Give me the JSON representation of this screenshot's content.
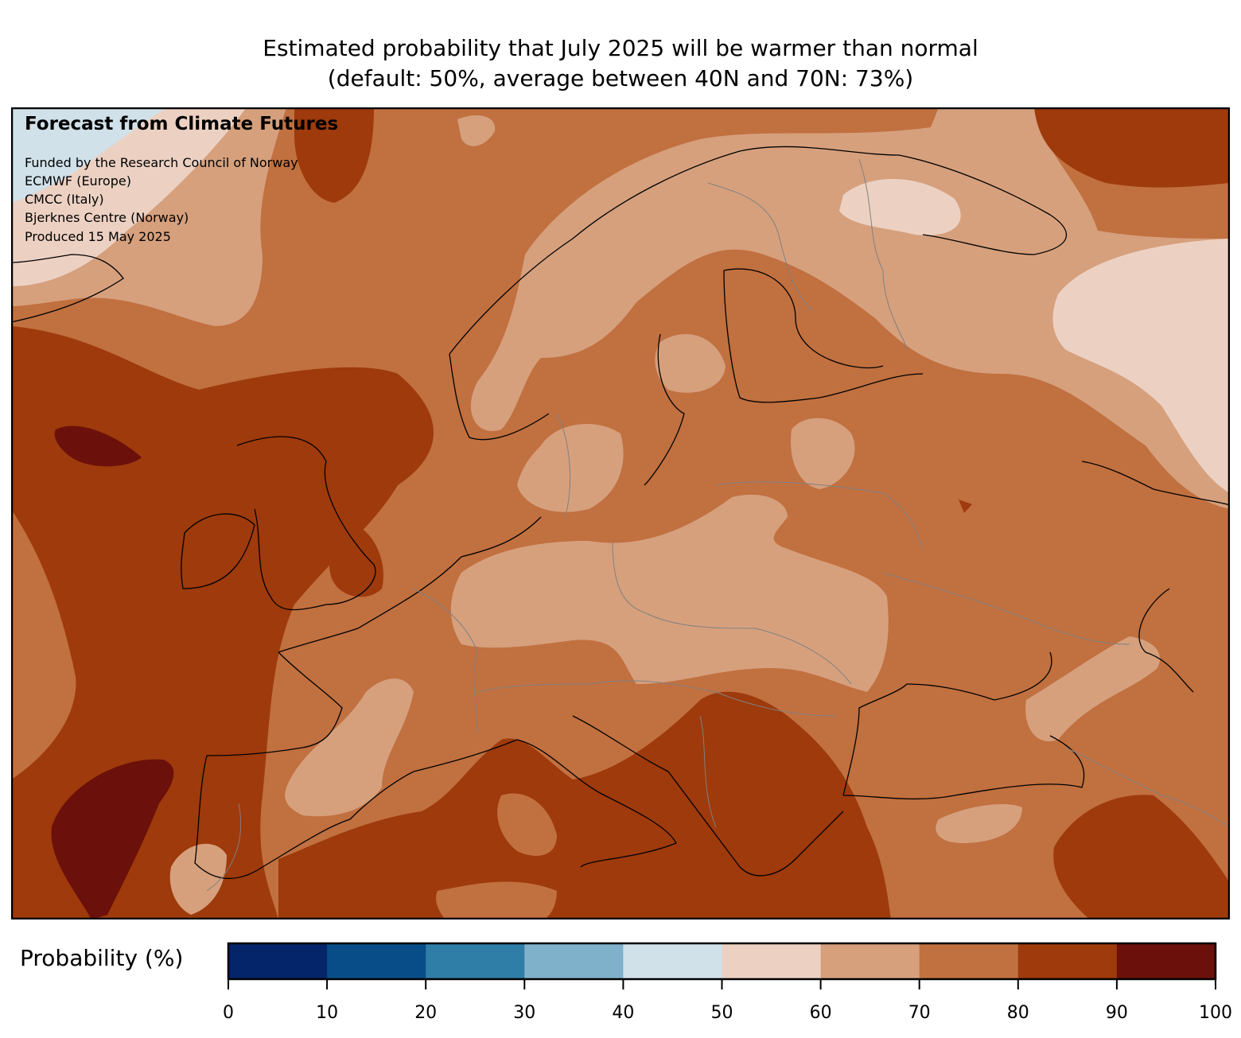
{
  "title": {
    "line1": "Estimated probability that July 2025 will be warmer than normal",
    "line2": "(default: 50%, average between 40N and 70N: 73%)"
  },
  "annotation": {
    "heading": "Forecast from Climate Futures",
    "lines": [
      "Funded by the Research Council of Norway",
      "ECMWF (Europe)",
      "CMCC (Italy)",
      "Bjerknes Centre (Norway)",
      "Produced 15 May 2025"
    ]
  },
  "colorbar": {
    "label": "Probability (%)",
    "ticks": [
      "0",
      "10",
      "20",
      "30",
      "40",
      "50",
      "60",
      "70",
      "80",
      "90",
      "100"
    ],
    "range": [
      0,
      100
    ],
    "colors": [
      "#05256a",
      "#084d87",
      "#2f7ea7",
      "#7fb1ca",
      "#d0e1e9",
      "#ecd1c3",
      "#d6a07d",
      "#c17040",
      "#9e3a0b",
      "#6b100a"
    ]
  },
  "map": {
    "region": "Europe",
    "type": "filled-contour",
    "levels_percent": [
      0,
      10,
      20,
      30,
      40,
      50,
      60,
      70,
      80,
      90,
      100
    ]
  }
}
